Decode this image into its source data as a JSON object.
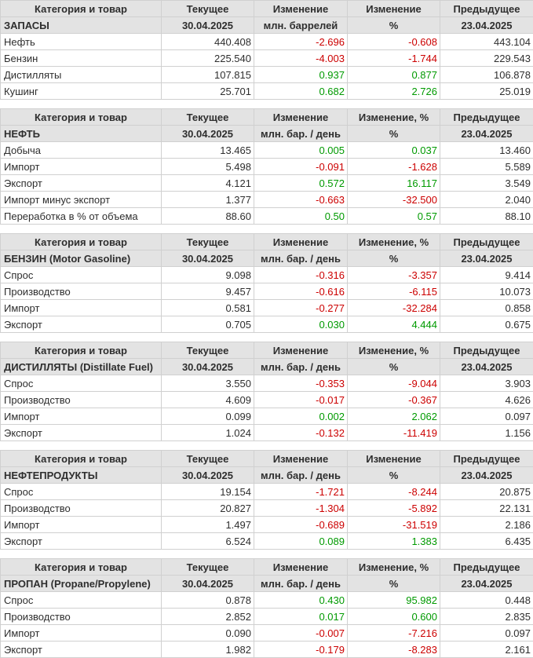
{
  "report_title": "Weekly petroleum statistics (ru)",
  "dates": {
    "current": "30.04.2025",
    "previous": "23.04.2025"
  },
  "colors": {
    "positive": "#009a00",
    "negative": "#cc0000",
    "header_bg": "#e3e3e3",
    "border": "#d0d0d0",
    "text": "#2e2e2e"
  },
  "tables": [
    {
      "header": {
        "category": "Категория и товар",
        "current": "Текущее",
        "change": "Изменение",
        "change_pct": "Изменение",
        "previous": "Предыдущее"
      },
      "subheader": {
        "section": "ЗАПАСЫ",
        "current_date": "30.04.2025",
        "unit": "млн. баррелей",
        "pct_symbol": "%",
        "previous_date": "23.04.2025"
      },
      "rows": [
        {
          "label": "Нефть",
          "current": "440.408",
          "change": "-2.696",
          "change_pct": "-0.608",
          "previous": "443.104"
        },
        {
          "label": "Бензин",
          "current": "225.540",
          "change": "-4.003",
          "change_pct": "-1.744",
          "previous": "229.543"
        },
        {
          "label": "Дистилляты",
          "current": "107.815",
          "change": "0.937",
          "change_pct": "0.877",
          "previous": "106.878"
        },
        {
          "label": "Кушинг",
          "current": "25.701",
          "change": "0.682",
          "change_pct": "2.726",
          "previous": "25.019"
        }
      ]
    },
    {
      "header": {
        "category": "Категория и товар",
        "current": "Текущее",
        "change": "Изменение",
        "change_pct": "Изменение, %",
        "previous": "Предыдущее"
      },
      "subheader": {
        "section": "НЕФТЬ",
        "current_date": "30.04.2025",
        "unit": "млн. бар. / день",
        "pct_symbol": "%",
        "previous_date": "23.04.2025"
      },
      "rows": [
        {
          "label": "Добыча",
          "current": "13.465",
          "change": "0.005",
          "change_pct": "0.037",
          "previous": "13.460"
        },
        {
          "label": "Импорт",
          "current": "5.498",
          "change": "-0.091",
          "change_pct": "-1.628",
          "previous": "5.589"
        },
        {
          "label": "Экспорт",
          "current": "4.121",
          "change": "0.572",
          "change_pct": "16.117",
          "previous": "3.549"
        },
        {
          "label": "Импорт минус экспорт",
          "current": "1.377",
          "change": "-0.663",
          "change_pct": "-32.500",
          "previous": "2.040"
        },
        {
          "label": "Переработка в % от объема",
          "current": "88.60",
          "change": "0.50",
          "change_pct": "0.57",
          "previous": "88.10"
        }
      ]
    },
    {
      "header": {
        "category": "Категория и товар",
        "current": "Текущее",
        "change": "Изменение",
        "change_pct": "Изменение, %",
        "previous": "Предыдущее"
      },
      "subheader": {
        "section": "БЕНЗИН (Motor Gasoline)",
        "current_date": "30.04.2025",
        "unit": "млн. бар. / день",
        "pct_symbol": "%",
        "previous_date": "23.04.2025"
      },
      "rows": [
        {
          "label": "Спрос",
          "current": "9.098",
          "change": "-0.316",
          "change_pct": "-3.357",
          "previous": "9.414"
        },
        {
          "label": "Производство",
          "current": "9.457",
          "change": "-0.616",
          "change_pct": "-6.115",
          "previous": "10.073"
        },
        {
          "label": "Импорт",
          "current": "0.581",
          "change": "-0.277",
          "change_pct": "-32.284",
          "previous": "0.858"
        },
        {
          "label": "Экспорт",
          "current": "0.705",
          "change": "0.030",
          "change_pct": "4.444",
          "previous": "0.675"
        }
      ]
    },
    {
      "header": {
        "category": "Категория и товар",
        "current": "Текущее",
        "change": "Изменение",
        "change_pct": "Изменение, %",
        "previous": "Предыдущее"
      },
      "subheader": {
        "section": "ДИСТИЛЛЯТЫ (Distillate Fuel)",
        "current_date": "30.04.2025",
        "unit": "млн. бар. / день",
        "pct_symbol": "%",
        "previous_date": "23.04.2025"
      },
      "rows": [
        {
          "label": "Спрос",
          "current": "3.550",
          "change": "-0.353",
          "change_pct": "-9.044",
          "previous": "3.903"
        },
        {
          "label": "Производство",
          "current": "4.609",
          "change": "-0.017",
          "change_pct": "-0.367",
          "previous": "4.626"
        },
        {
          "label": "Импорт",
          "current": "0.099",
          "change": "0.002",
          "change_pct": "2.062",
          "previous": "0.097"
        },
        {
          "label": "Экспорт",
          "current": "1.024",
          "change": "-0.132",
          "change_pct": "-11.419",
          "previous": "1.156"
        }
      ]
    },
    {
      "header": {
        "category": "Категория и товар",
        "current": "Текущее",
        "change": "Изменение",
        "change_pct": "Изменение",
        "previous": "Предыдущее"
      },
      "subheader": {
        "section": "НЕФТЕПРОДУКТЫ",
        "current_date": "30.04.2025",
        "unit": "млн. бар. / день",
        "pct_symbol": "%",
        "previous_date": "23.04.2025"
      },
      "rows": [
        {
          "label": "Спрос",
          "current": "19.154",
          "change": "-1.721",
          "change_pct": "-8.244",
          "previous": "20.875"
        },
        {
          "label": "Производство",
          "current": "20.827",
          "change": "-1.304",
          "change_pct": "-5.892",
          "previous": "22.131"
        },
        {
          "label": "Импорт",
          "current": "1.497",
          "change": "-0.689",
          "change_pct": "-31.519",
          "previous": "2.186"
        },
        {
          "label": "Экспорт",
          "current": "6.524",
          "change": "0.089",
          "change_pct": "1.383",
          "previous": "6.435"
        }
      ]
    },
    {
      "header": {
        "category": "Категория и товар",
        "current": "Текущее",
        "change": "Изменение",
        "change_pct": "Изменение, %",
        "previous": "Предыдущее"
      },
      "subheader": {
        "section": "ПРОПАН (Propane/Propylene)",
        "current_date": "30.04.2025",
        "unit": "млн. бар. / день",
        "pct_symbol": "%",
        "previous_date": "23.04.2025"
      },
      "rows": [
        {
          "label": "Спрос",
          "current": "0.878",
          "change": "0.430",
          "change_pct": "95.982",
          "previous": "0.448"
        },
        {
          "label": "Производство",
          "current": "2.852",
          "change": "0.017",
          "change_pct": "0.600",
          "previous": "2.835"
        },
        {
          "label": "Импорт",
          "current": "0.090",
          "change": "-0.007",
          "change_pct": "-7.216",
          "previous": "0.097"
        },
        {
          "label": "Экспорт",
          "current": "1.982",
          "change": "-0.179",
          "change_pct": "-8.283",
          "previous": "2.161"
        }
      ]
    }
  ]
}
